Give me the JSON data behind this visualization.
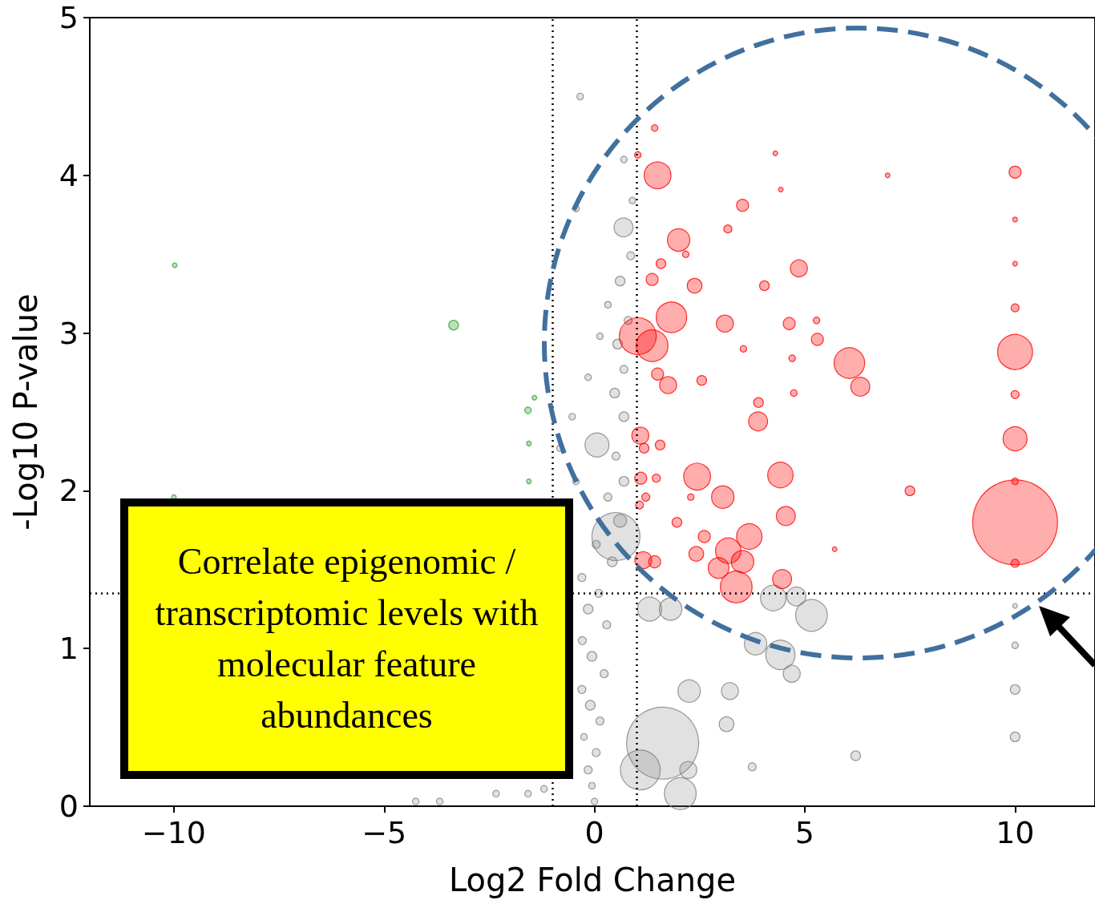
{
  "chart_data": {
    "type": "bubble",
    "xlabel": "Log2 Fold Change",
    "ylabel": "-Log10 P-value",
    "xlim": [
      -12,
      11.9
    ],
    "ylim": [
      0,
      5
    ],
    "xticks": [
      -10,
      -5,
      0,
      5,
      10
    ],
    "yticks": [
      0,
      1,
      2,
      3,
      4,
      5
    ],
    "grid": false,
    "marker": "circle",
    "annotations": [
      "Correlate epigenomic / transcriptomic levels with molecular feature abundances"
    ],
    "ref_lines": [
      {
        "axis": "x",
        "value": -1,
        "color": "#000000",
        "line_style": "dotted"
      },
      {
        "axis": "x",
        "value": 1,
        "color": "#000000",
        "line_style": "dotted"
      },
      {
        "axis": "y",
        "value": 1.35,
        "color": "#000000",
        "line_style": "dotted"
      }
    ],
    "series": [
      {
        "color": "#808080",
        "x": [
          10,
          10,
          10,
          10,
          1.62,
          0.51,
          5.16,
          4.25,
          4.42,
          3.83,
          2.25,
          2.04,
          0.69,
          0.06,
          3.22,
          3.14,
          4.69,
          6.21,
          3.75,
          1.31,
          1.81,
          2.23,
          1.09,
          4.8,
          0,
          -0.06,
          -0.15,
          0.04,
          -0.25,
          0.13,
          -0.1,
          -0.3,
          0.23,
          -0.06,
          -0.29,
          0.29,
          -0.15,
          0.1,
          -0.3,
          0.42,
          0.04,
          0.61,
          0.32,
          0.7,
          0.51,
          0.7,
          0.48,
          0.7,
          0.55,
          0.8,
          0.61,
          0.86,
          0.32,
          0.13,
          -0.15,
          -0.53,
          -0.82,
          -0.44,
          -0.44,
          -0.34,
          -2.34,
          -3.68,
          -4.25,
          -1.58,
          -1.2,
          0.9,
          0.7
        ],
        "values": [
          1.27,
          1.02,
          0.74,
          0.44,
          0.4,
          1.71,
          1.21,
          1.32,
          0.96,
          1.03,
          0.73,
          0.08,
          3.67,
          2.29,
          0.73,
          0.52,
          0.84,
          0.32,
          0.25,
          1.25,
          1.25,
          0.23,
          0.23,
          1.33,
          0.03,
          0.13,
          0.23,
          0.34,
          0.44,
          0.54,
          0.64,
          0.74,
          0.84,
          0.95,
          1.05,
          1.15,
          1.25,
          1.35,
          1.45,
          1.55,
          1.66,
          1.81,
          1.96,
          2.06,
          2.22,
          2.47,
          2.62,
          2.77,
          2.93,
          3.08,
          3.33,
          3.49,
          3.18,
          2.98,
          2.72,
          2.47,
          2.27,
          2.06,
          3.79,
          4.5,
          0.08,
          0.03,
          0.03,
          0.08,
          0.11,
          3.84,
          4.1
        ],
        "sizes": [
          0.003,
          0.006,
          0.013,
          0.013,
          0.72,
          0.32,
          0.14,
          0.09,
          0.12,
          0.07,
          0.07,
          0.14,
          0.05,
          0.08,
          0.04,
          0.03,
          0.04,
          0.013,
          0.009,
          0.08,
          0.07,
          0.04,
          0.22,
          0.05,
          0.006,
          0.006,
          0.009,
          0.009,
          0.006,
          0.009,
          0.013,
          0.009,
          0.009,
          0.013,
          0.009,
          0.009,
          0.013,
          0.009,
          0.009,
          0.013,
          0.009,
          0.023,
          0.009,
          0.013,
          0.009,
          0.013,
          0.013,
          0.009,
          0.013,
          0.009,
          0.013,
          0.009,
          0.006,
          0.006,
          0.006,
          0.006,
          0.006,
          0.006,
          0.006,
          0.006,
          0.006,
          0.006,
          0.006,
          0.006,
          0.006,
          0.006,
          0.006
        ]
      },
      {
        "color": "#2ca02c",
        "x": [
          -3.35,
          -9.98,
          -1.58,
          -1.43,
          -1.56,
          -1.56,
          -10
        ],
        "values": [
          3.05,
          3.43,
          2.51,
          2.59,
          2.3,
          2.06,
          1.96
        ],
        "sizes": [
          0.013,
          0.003,
          0.006,
          0.003,
          0.003,
          0.003,
          0.003
        ]
      },
      {
        "color": "#ff0000",
        "x": [
          1.5,
          2.0,
          1.03,
          1.37,
          1.83,
          2.38,
          3.52,
          3.1,
          4.86,
          6.06,
          6.32,
          3.89,
          2.44,
          4.42,
          3.05,
          4.55,
          3.68,
          3.18,
          3.52,
          2.95,
          3.37,
          4.46,
          2.42,
          2.61,
          1.75,
          1.5,
          1.09,
          1.37,
          4.04,
          4.63,
          5.3,
          10,
          10,
          10,
          10,
          10,
          10,
          10,
          10,
          10,
          10,
          7.5,
          6.97,
          4.3,
          4.43,
          1.43,
          1.03,
          5.71,
          3.54,
          3.9,
          1.18,
          1.56,
          1.1,
          1.47,
          1.16,
          1.43,
          1.96,
          2.55,
          1.07,
          1.22,
          2.29,
          4.74,
          5.28,
          4.7,
          3.17,
          2.17,
          1.58
        ],
        "values": [
          4.0,
          3.59,
          2.98,
          2.92,
          3.1,
          3.3,
          3.81,
          3.06,
          3.41,
          2.81,
          2.66,
          2.44,
          2.09,
          2.1,
          1.96,
          1.84,
          1.71,
          1.62,
          1.55,
          1.51,
          1.39,
          1.44,
          1.6,
          1.71,
          2.67,
          2.74,
          2.35,
          3.34,
          3.3,
          3.06,
          2.96,
          4.02,
          2.88,
          2.33,
          1.8,
          3.16,
          1.54,
          2.61,
          2.06,
          3.72,
          3.44,
          2.0,
          4.0,
          4.14,
          3.91,
          4.3,
          4.13,
          1.63,
          2.9,
          2.56,
          2.27,
          2.29,
          2.08,
          2.08,
          1.56,
          1.55,
          1.8,
          2.7,
          1.91,
          1.96,
          1.96,
          2.62,
          3.08,
          2.84,
          3.66,
          3.5,
          3.44
        ],
        "sizes": [
          0.1,
          0.07,
          0.19,
          0.14,
          0.13,
          0.03,
          0.02,
          0.04,
          0.04,
          0.13,
          0.05,
          0.05,
          0.1,
          0.09,
          0.07,
          0.05,
          0.09,
          0.09,
          0.07,
          0.06,
          0.14,
          0.05,
          0.03,
          0.02,
          0.04,
          0.02,
          0.04,
          0.02,
          0.013,
          0.02,
          0.02,
          0.02,
          0.17,
          0.08,
          1,
          0.009,
          0.009,
          0.009,
          0.006,
          0.003,
          0.003,
          0.013,
          0.003,
          0.003,
          0.003,
          0.006,
          0.006,
          0.003,
          0.006,
          0.013,
          0.013,
          0.013,
          0.02,
          0.009,
          0.04,
          0.02,
          0.013,
          0.013,
          0.009,
          0.009,
          0.006,
          0.006,
          0.006,
          0.006,
          0.009,
          0.006,
          0.013
        ]
      }
    ]
  }
}
